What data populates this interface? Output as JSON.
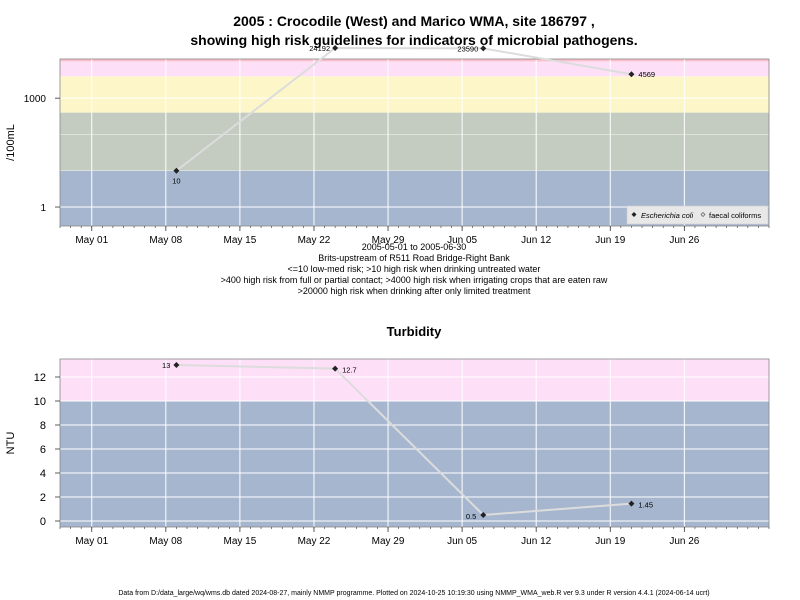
{
  "title_line1": "2005 : Crocodile (West) and Marico WMA, site 186797 ,",
  "title_line2": "showing high risk guidelines for indicators of microbial pathogens.",
  "footer": "Data from D:/data_large/wq/wms.db dated 2024-08-27, mainly NMMP programme. Plotted on 2024-10-25 10:19:30 using NMMP_WMA_web.R ver 9.3 under R version 4.4.1 (2024-06-14 ucrt)",
  "colors": {
    "band_blue": "#a6b6cf",
    "band_grey": "#c4ccc1",
    "band_yellow": "#fdf6c9",
    "band_pink": "#fde0f7",
    "band_red": "#fbbfd0",
    "line": "#dcdcdc",
    "grid": "#ffffff",
    "point": "#222222"
  },
  "chart_data": [
    {
      "type": "line",
      "title": "",
      "xlabel_lines": [
        "2005-05-01 to 2005-06-30",
        "Brits-upstream of R511 Road Bridge-Right Bank",
        "<=10 low-med risk; >10 high risk when drinking untreated water",
        ">400 high risk from full or partial contact; >4000 high risk when irrigating crops that are eaten raw",
        ">20000 high risk when drinking after only limited treatment"
      ],
      "ylabel": "/100mL",
      "y_scale": "log10",
      "ylim": [
        0.3,
        12000
      ],
      "xlim": [
        "2005-04-28",
        "2005-07-04"
      ],
      "x_ticks": [
        "2005-05-01",
        "2005-05-08",
        "2005-05-15",
        "2005-05-22",
        "2005-05-29",
        "2005-06-05",
        "2005-06-12",
        "2005-06-19",
        "2005-06-26"
      ],
      "x_tick_labels": [
        "May 01",
        "May 08",
        "May 15",
        "May 22",
        "May 29",
        "Jun 05",
        "Jun 12",
        "Jun 19",
        "Jun 26"
      ],
      "y_ticks": [
        1,
        1000
      ],
      "y_tick_labels": [
        "1",
        "1000"
      ],
      "bands": [
        {
          "from": 0.3,
          "to": 10,
          "color": "band_blue"
        },
        {
          "from": 10,
          "to": 400,
          "color": "band_grey"
        },
        {
          "from": 400,
          "to": 4000,
          "color": "band_yellow"
        },
        {
          "from": 4000,
          "to": 10000,
          "color": "band_pink"
        },
        {
          "from": 10000,
          "to": 12000,
          "color": "band_red"
        }
      ],
      "legend": {
        "position": "bottom-right",
        "items": [
          "Escherichia coli",
          "faecal coliforms"
        ]
      },
      "series": [
        {
          "name": "Escherichia coli",
          "x": [
            "2005-05-09",
            "2005-05-24",
            "2005-06-07",
            "2005-06-21"
          ],
          "y": [
            10,
            24192,
            23590,
            4569
          ],
          "labels": [
            "10",
            "24192",
            "23590",
            "4569"
          ]
        }
      ]
    },
    {
      "type": "line",
      "title": "Turbidity",
      "ylabel": "NTU",
      "y_scale": "linear",
      "ylim": [
        -0.5,
        13.5
      ],
      "xlim": [
        "2005-04-28",
        "2005-07-04"
      ],
      "x_ticks": [
        "2005-05-01",
        "2005-05-08",
        "2005-05-15",
        "2005-05-22",
        "2005-05-29",
        "2005-06-05",
        "2005-06-12",
        "2005-06-19",
        "2005-06-26"
      ],
      "x_tick_labels": [
        "May 01",
        "May 08",
        "May 15",
        "May 22",
        "May 29",
        "Jun 05",
        "Jun 12",
        "Jun 19",
        "Jun 26"
      ],
      "y_ticks": [
        0,
        2,
        4,
        6,
        8,
        10,
        12
      ],
      "y_tick_labels": [
        "0",
        "2",
        "4",
        "6",
        "8",
        "10",
        "12"
      ],
      "bands": [
        {
          "from": -0.5,
          "to": 10,
          "color": "band_blue"
        },
        {
          "from": 10,
          "to": 13.5,
          "color": "band_pink"
        }
      ],
      "series": [
        {
          "x": [
            "2005-05-09",
            "2005-05-24",
            "2005-06-07",
            "2005-06-21"
          ],
          "y": [
            13,
            12.7,
            0.5,
            1.45
          ],
          "labels": [
            "13",
            "12.7",
            "0.5",
            "1.45"
          ]
        }
      ]
    }
  ]
}
